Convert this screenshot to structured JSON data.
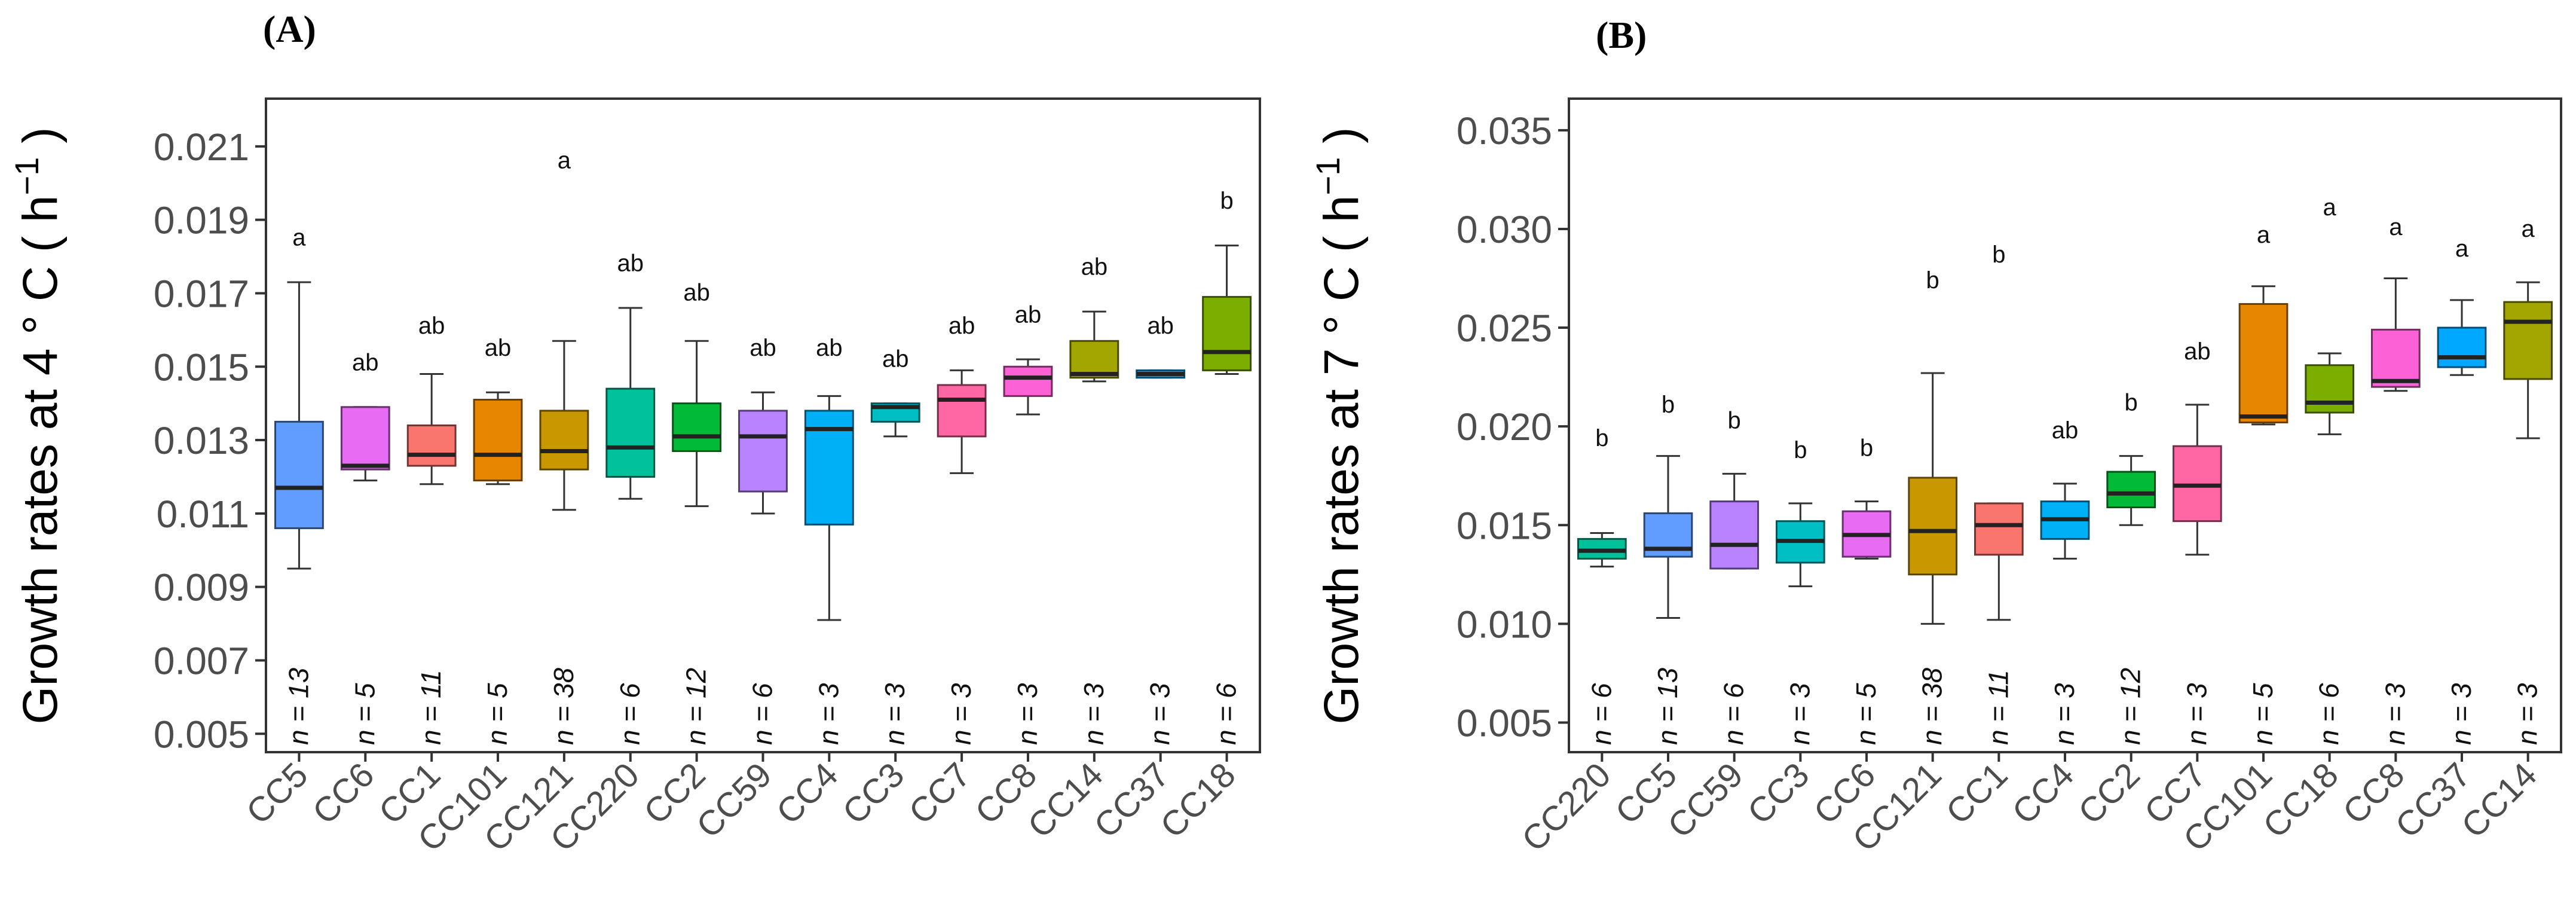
{
  "chart_data": [
    {
      "type": "box",
      "panel_label": "(A)",
      "ylabel_prefix": "Growth rates at 4 ° C ( h",
      "ylabel_sup": "−1",
      "ylabel_suffix": " )",
      "xlabel": "",
      "ylim": [
        0.0045,
        0.0223
      ],
      "yticks": [
        0.005,
        0.007,
        0.009,
        0.011,
        0.013,
        0.015,
        0.017,
        0.019,
        0.021
      ],
      "ytick_labels": [
        "0.005",
        "0.007",
        "0.009",
        "0.011",
        "0.013",
        "0.015",
        "0.017",
        "0.019",
        "0.021"
      ],
      "grid": false,
      "legend": "none",
      "categories": [
        "CC5",
        "CC6",
        "CC1",
        "CC101",
        "CC121",
        "CC220",
        "CC2",
        "CC59",
        "CC4",
        "CC3",
        "CC7",
        "CC8",
        "CC14",
        "CC37",
        "CC18"
      ],
      "boxes": [
        {
          "category": "CC5",
          "min": 0.0095,
          "q1": 0.0106,
          "median": 0.0117,
          "q3": 0.0135,
          "max": 0.0173,
          "color": "#619CFF",
          "sig": "a",
          "sig_y": 0.0183,
          "n_label": "n = 13"
        },
        {
          "category": "CC6",
          "min": 0.0119,
          "q1": 0.0122,
          "median": 0.0123,
          "q3": 0.0139,
          "max": 0.0139,
          "color": "#E76BF3",
          "sig": "ab",
          "sig_y": 0.0149,
          "n_label": "n = 5"
        },
        {
          "category": "CC1",
          "min": 0.0118,
          "q1": 0.0123,
          "median": 0.0126,
          "q3": 0.0134,
          "max": 0.0148,
          "color": "#F8766D",
          "sig": "ab",
          "sig_y": 0.0159,
          "n_label": "n = 11"
        },
        {
          "category": "CC101",
          "min": 0.0118,
          "q1": 0.0119,
          "median": 0.0126,
          "q3": 0.0141,
          "max": 0.0143,
          "color": "#E58700",
          "sig": "ab",
          "sig_y": 0.0153,
          "n_label": "n = 5"
        },
        {
          "category": "CC121",
          "min": 0.0111,
          "q1": 0.0122,
          "median": 0.0127,
          "q3": 0.0138,
          "max": 0.0157,
          "color": "#C99800",
          "sig": "a",
          "sig_y": 0.0204,
          "n_label": "n = 38"
        },
        {
          "category": "CC220",
          "min": 0.0114,
          "q1": 0.012,
          "median": 0.0128,
          "q3": 0.0144,
          "max": 0.0166,
          "color": "#00C19A",
          "sig": "ab",
          "sig_y": 0.0176,
          "n_label": "n = 6"
        },
        {
          "category": "CC2",
          "min": 0.0112,
          "q1": 0.0127,
          "median": 0.0131,
          "q3": 0.014,
          "max": 0.0157,
          "color": "#00BA38",
          "sig": "ab",
          "sig_y": 0.0168,
          "n_label": "n = 12"
        },
        {
          "category": "CC59",
          "min": 0.011,
          "q1": 0.0116,
          "median": 0.0131,
          "q3": 0.0138,
          "max": 0.0143,
          "color": "#B983FF",
          "sig": "ab",
          "sig_y": 0.0153,
          "n_label": "n = 6"
        },
        {
          "category": "CC4",
          "min": 0.0081,
          "q1": 0.0107,
          "median": 0.0133,
          "q3": 0.0138,
          "max": 0.0142,
          "color": "#00B0F6",
          "sig": "ab",
          "sig_y": 0.0153,
          "n_label": "n = 3"
        },
        {
          "category": "CC3",
          "min": 0.0131,
          "q1": 0.0135,
          "median": 0.0139,
          "q3": 0.014,
          "max": 0.014,
          "color": "#00BFC4",
          "sig": "ab",
          "sig_y": 0.015,
          "n_label": "n = 3"
        },
        {
          "category": "CC7",
          "min": 0.0121,
          "q1": 0.0131,
          "median": 0.0141,
          "q3": 0.0145,
          "max": 0.0149,
          "color": "#FF67A4",
          "sig": "ab",
          "sig_y": 0.0159,
          "n_label": "n = 3"
        },
        {
          "category": "CC8",
          "min": 0.0137,
          "q1": 0.0142,
          "median": 0.0147,
          "q3": 0.015,
          "max": 0.0152,
          "color": "#FC61D5",
          "sig": "ab",
          "sig_y": 0.0162,
          "n_label": "n = 3"
        },
        {
          "category": "CC14",
          "min": 0.0146,
          "q1": 0.0147,
          "median": 0.0148,
          "q3": 0.0157,
          "max": 0.0165,
          "color": "#A3A500",
          "sig": "ab",
          "sig_y": 0.0175,
          "n_label": "n = 3"
        },
        {
          "category": "CC37",
          "min": 0.0147,
          "q1": 0.0147,
          "median": 0.0148,
          "q3": 0.0149,
          "max": 0.0149,
          "color": "#00A9FF",
          "sig": "ab",
          "sig_y": 0.0159,
          "n_label": "n = 3"
        },
        {
          "category": "CC18",
          "min": 0.0148,
          "q1": 0.0149,
          "median": 0.0154,
          "q3": 0.0169,
          "max": 0.0183,
          "color": "#7CAE00",
          "sig": "b",
          "sig_y": 0.0193,
          "n_label": "n = 6"
        }
      ]
    },
    {
      "type": "box",
      "panel_label": "(B)",
      "ylabel_prefix": "Growth rates at 7 ° C ( h",
      "ylabel_sup": "−1",
      "ylabel_suffix": " )",
      "xlabel": "",
      "ylim": [
        0.0035,
        0.0366
      ],
      "yticks": [
        0.005,
        0.01,
        0.015,
        0.02,
        0.025,
        0.03,
        0.035
      ],
      "ytick_labels": [
        "0.005",
        "0.010",
        "0.015",
        "0.020",
        "0.025",
        "0.030",
        "0.035"
      ],
      "grid": false,
      "legend": "none",
      "categories": [
        "CC220",
        "CC5",
        "CC59",
        "CC3",
        "CC6",
        "CC121",
        "CC1",
        "CC4",
        "CC2",
        "CC7",
        "CC101",
        "CC18",
        "CC8",
        "CC37",
        "CC14"
      ],
      "boxes": [
        {
          "category": "CC220",
          "min": 0.0129,
          "q1": 0.0133,
          "median": 0.0137,
          "q3": 0.0143,
          "max": 0.0146,
          "color": "#00C19A",
          "sig": "b",
          "sig_y": 0.019,
          "n_label": "n = 6"
        },
        {
          "category": "CC5",
          "min": 0.0103,
          "q1": 0.0134,
          "median": 0.0138,
          "q3": 0.0156,
          "max": 0.0185,
          "color": "#619CFF",
          "sig": "b",
          "sig_y": 0.0207,
          "n_label": "n = 13"
        },
        {
          "category": "CC59",
          "min": 0.0128,
          "q1": 0.0128,
          "median": 0.014,
          "q3": 0.0162,
          "max": 0.0176,
          "color": "#B983FF",
          "sig": "b",
          "sig_y": 0.0199,
          "n_label": "n = 6"
        },
        {
          "category": "CC3",
          "min": 0.0119,
          "q1": 0.0131,
          "median": 0.0142,
          "q3": 0.0152,
          "max": 0.0161,
          "color": "#00BFC4",
          "sig": "b",
          "sig_y": 0.0184,
          "n_label": "n = 3"
        },
        {
          "category": "CC6",
          "min": 0.0133,
          "q1": 0.0134,
          "median": 0.0145,
          "q3": 0.0157,
          "max": 0.0162,
          "color": "#E76BF3",
          "sig": "b",
          "sig_y": 0.0185,
          "n_label": "n = 5"
        },
        {
          "category": "CC121",
          "min": 0.01,
          "q1": 0.0125,
          "median": 0.0147,
          "q3": 0.0174,
          "max": 0.0227,
          "color": "#C99800",
          "sig": "b",
          "sig_y": 0.027,
          "n_label": "n = 38"
        },
        {
          "category": "CC1",
          "min": 0.0102,
          "q1": 0.0135,
          "median": 0.015,
          "q3": 0.0161,
          "max": 0.0161,
          "color": "#F8766D",
          "sig": "b",
          "sig_y": 0.0283,
          "n_label": "n = 11"
        },
        {
          "category": "CC4",
          "min": 0.0133,
          "q1": 0.0143,
          "median": 0.0153,
          "q3": 0.0162,
          "max": 0.0171,
          "color": "#00B0F6",
          "sig": "ab",
          "sig_y": 0.0194,
          "n_label": "n = 3"
        },
        {
          "category": "CC2",
          "min": 0.015,
          "q1": 0.0159,
          "median": 0.0166,
          "q3": 0.0177,
          "max": 0.0185,
          "color": "#00BA38",
          "sig": "b",
          "sig_y": 0.0208,
          "n_label": "n = 12"
        },
        {
          "category": "CC7",
          "min": 0.0135,
          "q1": 0.0152,
          "median": 0.017,
          "q3": 0.019,
          "max": 0.0211,
          "color": "#FF67A4",
          "sig": "ab",
          "sig_y": 0.0234,
          "n_label": "n = 3"
        },
        {
          "category": "CC101",
          "min": 0.0201,
          "q1": 0.0202,
          "median": 0.0205,
          "q3": 0.0262,
          "max": 0.0271,
          "color": "#E58700",
          "sig": "a",
          "sig_y": 0.0293,
          "n_label": "n = 5"
        },
        {
          "category": "CC18",
          "min": 0.0196,
          "q1": 0.0207,
          "median": 0.0212,
          "q3": 0.0231,
          "max": 0.0237,
          "color": "#7CAE00",
          "sig": "a",
          "sig_y": 0.0307,
          "n_label": "n = 6"
        },
        {
          "category": "CC8",
          "min": 0.0218,
          "q1": 0.022,
          "median": 0.0223,
          "q3": 0.0249,
          "max": 0.0275,
          "color": "#FC61D5",
          "sig": "a",
          "sig_y": 0.0297,
          "n_label": "n = 3"
        },
        {
          "category": "CC37",
          "min": 0.0226,
          "q1": 0.023,
          "median": 0.0235,
          "q3": 0.025,
          "max": 0.0264,
          "color": "#00A9FF",
          "sig": "a",
          "sig_y": 0.0286,
          "n_label": "n = 3"
        },
        {
          "category": "CC14",
          "min": 0.0194,
          "q1": 0.0224,
          "median": 0.0253,
          "q3": 0.0263,
          "max": 0.0273,
          "color": "#A3A500",
          "sig": "a",
          "sig_y": 0.0296,
          "n_label": "n = 3"
        }
      ]
    }
  ]
}
